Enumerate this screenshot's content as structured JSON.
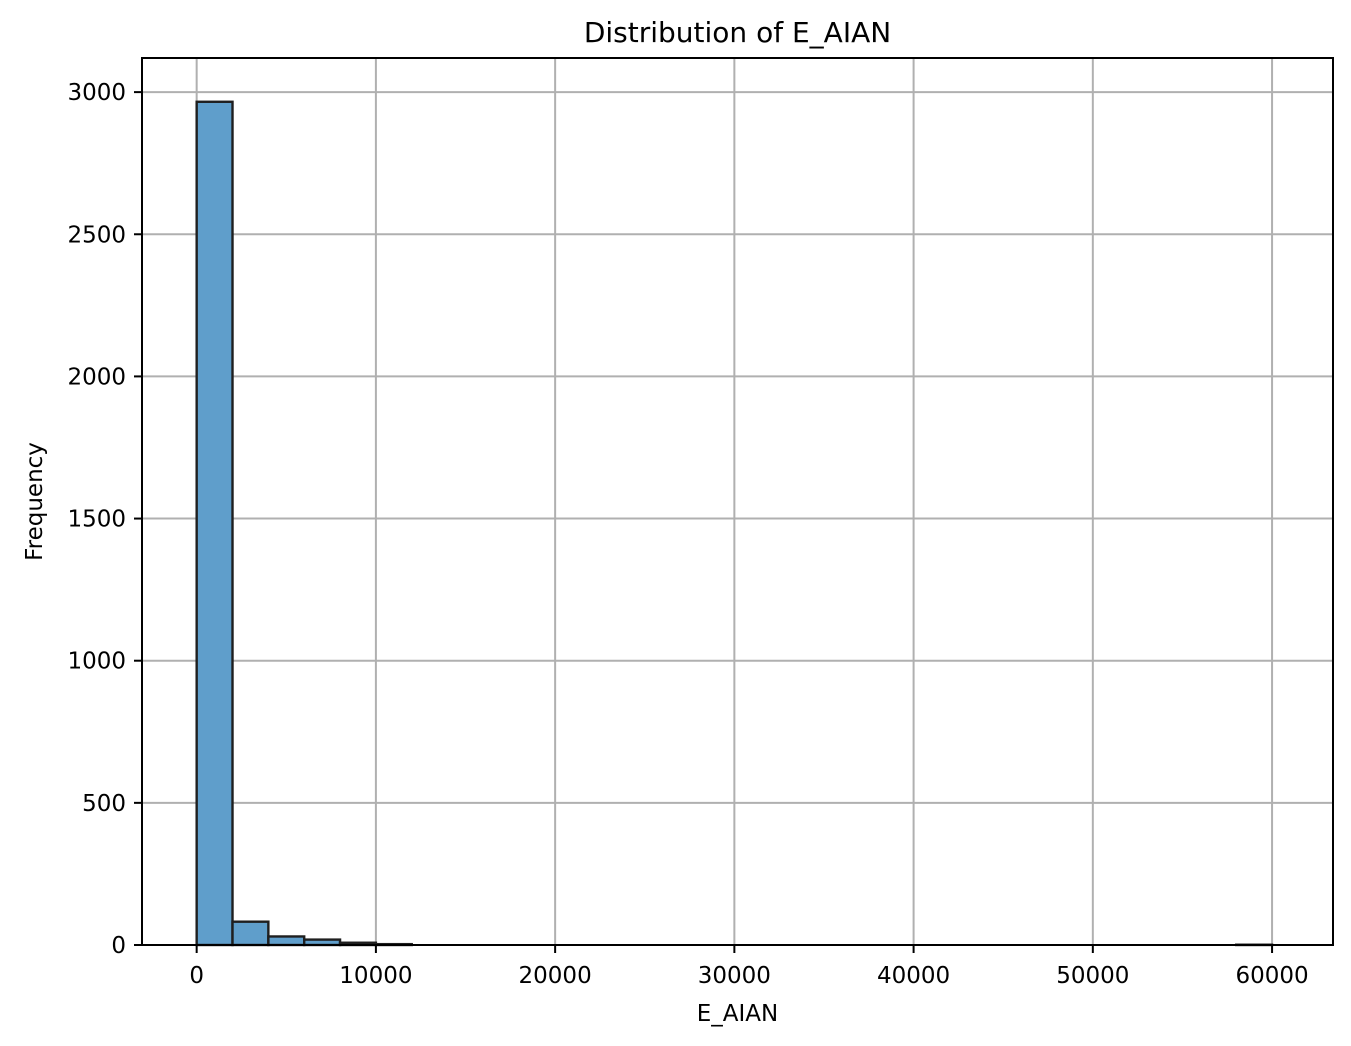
{
  "chart_data": {
    "type": "bar",
    "title": "Distribution of E_AIAN",
    "xlabel": "E_AIAN",
    "ylabel": "Frequency",
    "xlim": [
      -3050,
      63400
    ],
    "ylim": [
      0,
      3120
    ],
    "xticks": [
      0,
      10000,
      20000,
      30000,
      40000,
      50000,
      60000
    ],
    "yticks": [
      0,
      500,
      1000,
      1500,
      2000,
      2500,
      3000
    ],
    "grid": true,
    "bar_color": "#5f9ecb",
    "bins": [
      {
        "start": 0,
        "end": 2000,
        "value": 2966
      },
      {
        "start": 2000,
        "end": 4000,
        "value": 82
      },
      {
        "start": 4000,
        "end": 6000,
        "value": 30
      },
      {
        "start": 6000,
        "end": 8000,
        "value": 19
      },
      {
        "start": 8000,
        "end": 10000,
        "value": 8
      },
      {
        "start": 10000,
        "end": 12000,
        "value": 3
      },
      {
        "start": 12000,
        "end": 14000,
        "value": 0
      },
      {
        "start": 14000,
        "end": 16000,
        "value": 0
      },
      {
        "start": 16000,
        "end": 18000,
        "value": 0
      },
      {
        "start": 18000,
        "end": 20000,
        "value": 0
      },
      {
        "start": 20000,
        "end": 22000,
        "value": 0
      },
      {
        "start": 22000,
        "end": 24000,
        "value": 0
      },
      {
        "start": 24000,
        "end": 26000,
        "value": 0
      },
      {
        "start": 26000,
        "end": 28000,
        "value": 0
      },
      {
        "start": 28000,
        "end": 30000,
        "value": 0
      },
      {
        "start": 30000,
        "end": 32000,
        "value": 0
      },
      {
        "start": 32000,
        "end": 34000,
        "value": 0
      },
      {
        "start": 34000,
        "end": 36000,
        "value": 0
      },
      {
        "start": 36000,
        "end": 38000,
        "value": 0
      },
      {
        "start": 38000,
        "end": 40000,
        "value": 0
      },
      {
        "start": 40000,
        "end": 42000,
        "value": 0
      },
      {
        "start": 42000,
        "end": 44000,
        "value": 0
      },
      {
        "start": 44000,
        "end": 46000,
        "value": 0
      },
      {
        "start": 46000,
        "end": 48000,
        "value": 0
      },
      {
        "start": 48000,
        "end": 50000,
        "value": 0
      },
      {
        "start": 50000,
        "end": 52000,
        "value": 0
      },
      {
        "start": 52000,
        "end": 54000,
        "value": 0
      },
      {
        "start": 54000,
        "end": 56000,
        "value": 0
      },
      {
        "start": 56000,
        "end": 58000,
        "value": 0
      },
      {
        "start": 58000,
        "end": 60000,
        "value": 1
      }
    ]
  }
}
